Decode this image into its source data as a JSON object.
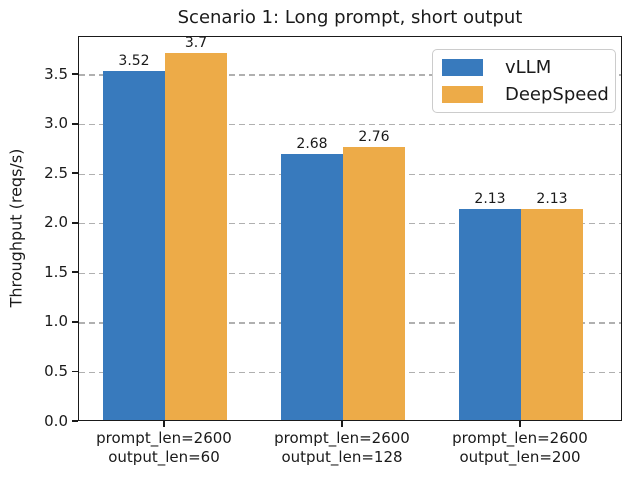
{
  "chart_data": {
    "type": "bar",
    "title": "Scenario 1: Long prompt, short output",
    "ylabel": "Throughput (reqs/s)",
    "xlabel": "",
    "categories": [
      "prompt_len=2600\noutput_len=60",
      "prompt_len=2600\noutput_len=128",
      "prompt_len=2600\noutput_len=200"
    ],
    "series": [
      {
        "name": "vLLM",
        "color": "#387ABD",
        "values": [
          3.52,
          2.68,
          2.13
        ]
      },
      {
        "name": "DeepSpeed",
        "color": "#EDAB48",
        "values": [
          3.7,
          2.76,
          2.13
        ]
      }
    ],
    "bar_value_labels": [
      [
        "3.52",
        "2.68",
        "2.13"
      ],
      [
        "3.7",
        "2.76",
        "2.13"
      ]
    ],
    "ylim": [
      0,
      3.885
    ],
    "yticks": [
      "0.0",
      "0.5",
      "1.0",
      "1.5",
      "2.0",
      "2.5",
      "3.0",
      "3.5"
    ],
    "grid": "horizontal dashed",
    "grid_color": "#b0b0b0",
    "legend": {
      "position": "upper right",
      "entries": [
        "vLLM",
        "DeepSpeed"
      ]
    }
  }
}
